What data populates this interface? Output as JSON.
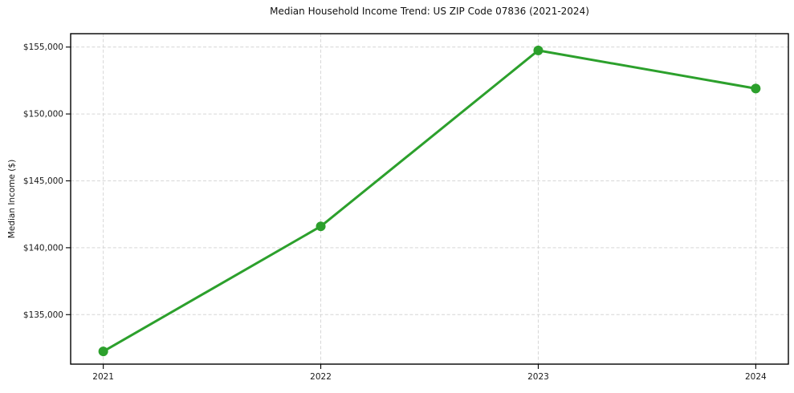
{
  "figure": {
    "background_color": "#ffffff",
    "text_color": "#1a1a1a",
    "grid_color": "#d6d6d6",
    "spine_color": "#000000"
  },
  "chart_data": {
    "type": "line",
    "title": "Median Household Income Trend: US ZIP Code 07836 (2021-2024)",
    "xlabel": "",
    "ylabel": "Median Income ($)",
    "x": [
      2021,
      2022,
      2023,
      2024
    ],
    "x_labels": [
      "2021",
      "2022",
      "2023",
      "2024"
    ],
    "series": [
      {
        "name": "Median household income",
        "values": [
          132250,
          141600,
          154750,
          151900
        ]
      }
    ],
    "yticks": [
      135000,
      140000,
      145000,
      150000,
      155000
    ],
    "ytick_labels": [
      "$135,000",
      "$140,000",
      "$145,000",
      "$150,000",
      "$155,000"
    ],
    "xlim": [
      2020.85,
      2024.15
    ],
    "ylim": [
      131300,
      156000
    ],
    "grid": true,
    "grid_style": "dashed",
    "legend_position": "none",
    "line_color": "#2ca02c",
    "marker": "circle",
    "marker_radius": 6,
    "line_width": 3
  }
}
